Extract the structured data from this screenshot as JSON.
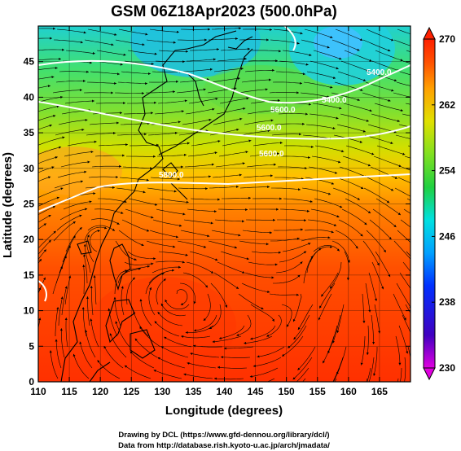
{
  "title": "GSM 06Z18Apr2023 (500.0hPa)",
  "axes": {
    "xlabel": "Longitude (degrees)",
    "ylabel": "Latitude  (degrees)",
    "x_ticks": [
      "110",
      "115",
      "120",
      "125",
      "130",
      "135",
      "140",
      "145",
      "150",
      "155",
      "160",
      "165"
    ],
    "y_ticks": [
      "0",
      "5",
      "10",
      "15",
      "20",
      "25",
      "30",
      "35",
      "40",
      "45"
    ],
    "x_range": [
      110,
      170
    ],
    "y_range": [
      0,
      50
    ]
  },
  "colorbar": {
    "ticks": [
      "270",
      "262",
      "254",
      "246",
      "238",
      "230"
    ],
    "range": [
      230,
      270
    ],
    "colors": [
      "#e000e0",
      "#4000c0",
      "#0030ff",
      "#00a0ff",
      "#00e0e0",
      "#20d040",
      "#80e020",
      "#e0e000",
      "#ffa000",
      "#ff5000",
      "#ff2000"
    ]
  },
  "contour_labels": [
    "5600.0",
    "5600.0",
    "5600.0",
    "5400.0",
    "5400.0",
    "5800.0"
  ],
  "credits": {
    "line1": "Drawing by DCL (https://www.gfd-dennou.org/library/dcl/)",
    "line2": "Data from http://database.rish.kyoto-u.ac.jp/arch/jmadata/"
  }
}
